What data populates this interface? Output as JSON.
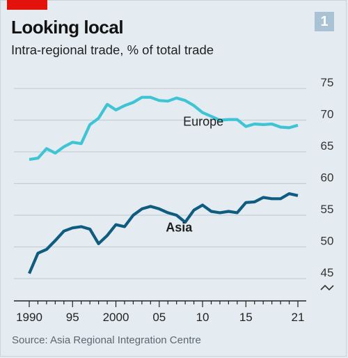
{
  "header": {
    "title": "Looking local",
    "subtitle": "Intra-regional trade, % of total trade",
    "badge": "1"
  },
  "footer": {
    "source": "Source: Asia Regional Integration Centre"
  },
  "colors": {
    "europe": "#3ec4d4",
    "asia": "#0f5c80",
    "gridline": "#c4d0d8",
    "axis": "#222222",
    "accent_red": "#e3120b",
    "badge_bg": "#a9c3d4"
  },
  "chart_data": {
    "type": "line",
    "title": "Looking local",
    "subtitle": "Intra-regional trade, % of total trade",
    "x": [
      1990,
      1991,
      1992,
      1993,
      1994,
      1995,
      1996,
      1997,
      1998,
      1999,
      2000,
      2001,
      2002,
      2003,
      2004,
      2005,
      2006,
      2007,
      2008,
      2009,
      2010,
      2011,
      2012,
      2013,
      2014,
      2015,
      2016,
      2017,
      2018,
      2019,
      2020,
      2021
    ],
    "x_tick_values": [
      1990,
      1995,
      2000,
      2005,
      2010,
      2015,
      2021
    ],
    "x_tick_labels": [
      "1990",
      "95",
      "2000",
      "05",
      "10",
      "15",
      "21"
    ],
    "y_tick_values": [
      75,
      70,
      65,
      60,
      55,
      50,
      45
    ],
    "y_tick_labels": [
      "75",
      "70",
      "65",
      "60",
      "55",
      "50",
      "45"
    ],
    "ylim": [
      42.5,
      77
    ],
    "axis_break": true,
    "grid": true,
    "series": [
      {
        "name": "Europe",
        "color_key": "europe",
        "label_position": "middle",
        "bold_label": false,
        "values": [
          63.8,
          64.0,
          65.5,
          64.8,
          65.8,
          66.5,
          66.3,
          69.3,
          70.3,
          72.5,
          71.6,
          72.3,
          72.8,
          73.6,
          73.6,
          73.1,
          73.0,
          73.5,
          73.1,
          72.3,
          71.2,
          70.6,
          70.0,
          70.1,
          70.1,
          69.0,
          69.4,
          69.3,
          69.4,
          68.9,
          68.8,
          69.2
        ]
      },
      {
        "name": "Asia",
        "color_key": "asia",
        "label_position": "middle",
        "bold_label": true,
        "values": [
          45.8,
          49.0,
          49.6,
          51.0,
          52.5,
          53.0,
          53.2,
          52.8,
          50.5,
          51.8,
          53.5,
          53.2,
          55.0,
          56.0,
          56.4,
          56.0,
          55.4,
          55.0,
          53.9,
          55.8,
          56.6,
          55.6,
          55.4,
          55.6,
          55.4,
          57.0,
          57.1,
          57.8,
          57.6,
          57.6,
          58.4,
          58.1
        ]
      }
    ]
  }
}
